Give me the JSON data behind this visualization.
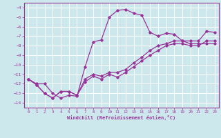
{
  "xlabel": "Windchill (Refroidissement éolien,°C)",
  "ylabel": "",
  "xlim": [
    -0.5,
    23.5
  ],
  "ylim": [
    -14.5,
    -3.5
  ],
  "xticks": [
    0,
    1,
    2,
    3,
    4,
    5,
    6,
    7,
    8,
    9,
    10,
    11,
    12,
    13,
    14,
    15,
    16,
    17,
    18,
    19,
    20,
    21,
    22,
    23
  ],
  "yticks": [
    -14,
    -13,
    -12,
    -11,
    -10,
    -9,
    -8,
    -7,
    -6,
    -5,
    -4
  ],
  "bg_color": "#cce8ec",
  "line_color": "#993399",
  "grid_color": "#ffffff",
  "line1_x": [
    0,
    1,
    2,
    3,
    4,
    5,
    6,
    7,
    8,
    9,
    10,
    11,
    12,
    13,
    14,
    15,
    16,
    17,
    18,
    19,
    20,
    21,
    22,
    23
  ],
  "line1_y": [
    -11.5,
    -12.0,
    -12.0,
    -13.0,
    -13.5,
    -13.2,
    -13.3,
    -10.2,
    -7.6,
    -7.4,
    -5.0,
    -4.3,
    -4.2,
    -4.6,
    -4.8,
    -6.6,
    -7.0,
    -6.7,
    -6.8,
    -7.5,
    -7.5,
    -7.5,
    -6.5,
    -6.6
  ],
  "line2_x": [
    0,
    1,
    2,
    3,
    4,
    5,
    6,
    7,
    8,
    9,
    10,
    11,
    12,
    13,
    14,
    15,
    16,
    17,
    18,
    19,
    20,
    21,
    22,
    23
  ],
  "line2_y": [
    -11.5,
    -12.1,
    -13.0,
    -13.5,
    -12.8,
    -12.8,
    -13.2,
    -11.5,
    -11.0,
    -11.2,
    -10.8,
    -10.8,
    -10.5,
    -9.8,
    -9.2,
    -8.5,
    -8.0,
    -7.8,
    -7.5,
    -7.5,
    -7.8,
    -7.8,
    -7.8,
    -7.8
  ],
  "line3_x": [
    0,
    1,
    2,
    3,
    4,
    5,
    6,
    7,
    8,
    9,
    10,
    11,
    12,
    13,
    14,
    15,
    16,
    17,
    18,
    19,
    20,
    21,
    22,
    23
  ],
  "line3_y": [
    -11.5,
    -12.1,
    -13.0,
    -13.5,
    -12.8,
    -12.8,
    -13.2,
    -11.8,
    -11.2,
    -11.5,
    -11.0,
    -11.3,
    -10.8,
    -10.2,
    -9.6,
    -9.0,
    -8.5,
    -8.0,
    -7.8,
    -7.8,
    -8.0,
    -8.0,
    -7.5,
    -7.5
  ]
}
